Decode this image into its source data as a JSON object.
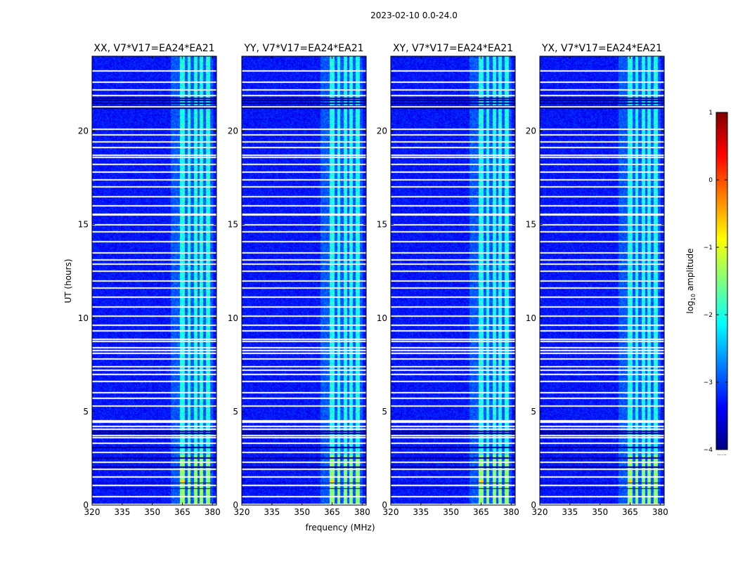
{
  "chart_data": {
    "type": "heatmap",
    "title": "2023-02-10 0.0-24.0",
    "xlabel": "frequency (MHz)",
    "ylabel": "UT (hours)",
    "xlim": [
      320,
      382
    ],
    "ylim": [
      0,
      24
    ],
    "x_ticks": [
      "320",
      "335",
      "350",
      "365",
      "380"
    ],
    "y_ticks": [
      "0",
      "5",
      "10",
      "15",
      "20"
    ],
    "panels": [
      {
        "name": "XX",
        "title": "XX, V7*V17=EA24*EA21"
      },
      {
        "name": "YY",
        "title": "YY, V7*V17=EA24*EA21"
      },
      {
        "name": "XY",
        "title": "XY, V7*V17=EA24*EA21"
      },
      {
        "name": "YX",
        "title": "YX, V7*V17=EA24*EA21"
      }
    ],
    "colorbar": {
      "label_prefix": "log",
      "label_subscript": "10",
      "label_suffix": " amplitude",
      "range": [
        -4,
        1
      ],
      "ticks": [
        "1",
        "0",
        "−1",
        "−2",
        "−3",
        "−4"
      ],
      "colormap": "jet",
      "footer": "......"
    },
    "features": {
      "background_level": -3.3,
      "rfi_bands_mhz": [
        [
          363.5,
          366.0
        ],
        [
          367.5,
          369.0
        ],
        [
          370.5,
          372.5
        ],
        [
          373.5,
          375.0
        ],
        [
          376.5,
          378.5
        ]
      ],
      "rfi_level": -2.0,
      "flagged_hours": [
        0.05,
        0.45,
        1.05,
        1.5,
        1.9,
        2.3,
        2.8,
        3.3,
        3.6,
        3.7,
        4.05,
        4.2,
        4.45,
        4.5,
        5.3,
        5.7,
        6.0,
        6.6,
        7.0,
        7.2,
        7.4,
        7.8,
        8.1,
        8.25,
        8.4,
        8.75,
        8.85,
        9.3,
        9.6,
        10.1,
        10.6,
        11.1,
        11.6,
        12.0,
        12.5,
        12.9,
        13.1,
        13.5,
        14.1,
        14.6,
        15.0,
        15.5,
        15.55,
        16.0,
        16.5,
        17.0,
        17.4,
        17.8,
        18.2,
        18.6,
        18.7,
        19.1,
        19.4,
        19.8,
        20.1,
        21.3,
        21.9,
        22.2,
        22.6,
        23.2
      ],
      "dark_hours": [
        0.9,
        1.2,
        2.05,
        2.55,
        3.1,
        3.85,
        3.95,
        21.25,
        21.35,
        21.5,
        21.65,
        21.75
      ],
      "bright_block": {
        "hours": [
          0.0,
          2.7
        ],
        "level": -1.4
      },
      "hot_spot": {
        "hour": 1.3,
        "mhz": [
          364,
          366
        ],
        "level": -0.7
      }
    }
  }
}
